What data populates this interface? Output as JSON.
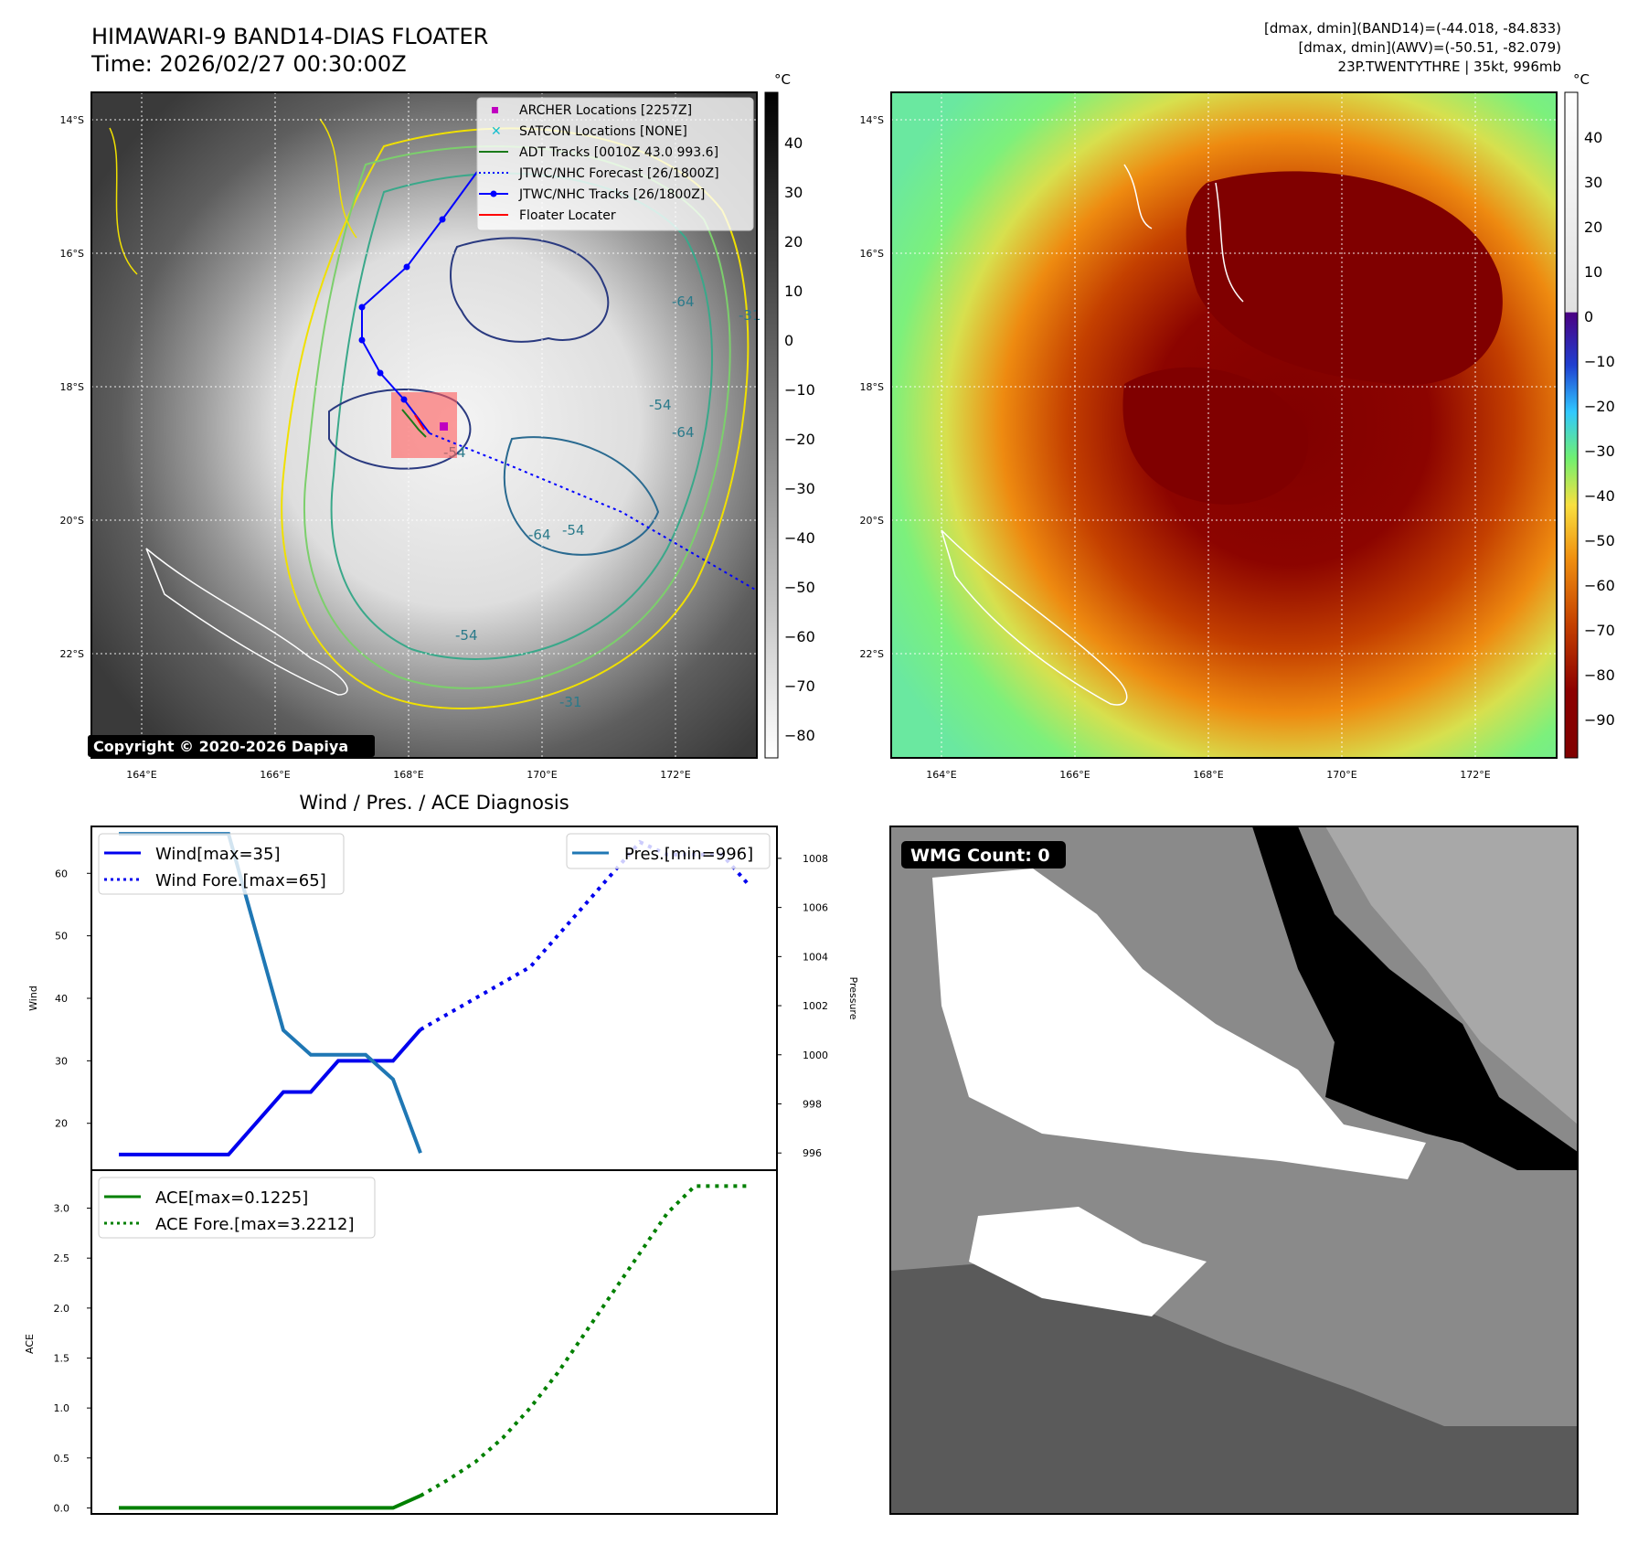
{
  "header": {
    "title_line1": "HIMAWARI-9 BAND14-DIAS FLOATER",
    "title_line2": "Time: 2026/02/27 00:30:00Z",
    "stats_line1": "[dmax, dmin](BAND14)=(-44.018, -84.833)",
    "stats_line2": "[dmax, dmin](AWV)=(-50.51, -82.079)",
    "stats_line3": "23P.TWENTYTHRE | 35kt, 996mb"
  },
  "colors": {
    "wind": "#0000ee",
    "pressure": "#1f77b4",
    "ace": "#008000",
    "archer": "#c000c0",
    "satcon": "#17becf",
    "adt": "#1a7a1a",
    "floater": "#ff0000"
  },
  "map_left": {
    "unit_label": "°C",
    "lat_labels": [
      "14°S",
      "16°S",
      "18°S",
      "20°S",
      "22°S"
    ],
    "lon_labels": [
      "164°E",
      "166°E",
      "168°E",
      "170°E",
      "172°E"
    ],
    "colorbar_ticks": [
      "40",
      "30",
      "20",
      "10",
      "0",
      "−10",
      "−20",
      "−30",
      "−40",
      "−50",
      "−60",
      "−70",
      "−80"
    ],
    "contour_labels": [
      "-64",
      "-54",
      "-64",
      "-54",
      "-64",
      "-54",
      "-54",
      "-31",
      "-31"
    ],
    "copyright": "Copyright © 2020-2026 Dapiya",
    "legend": [
      "ARCHER Locations [2257Z]",
      "SATCON Locations [NONE]",
      "ADT Tracks [0010Z 43.0 993.6]",
      "JTWC/NHC Forecast [26/1800Z]",
      "JTWC/NHC Tracks [26/1800Z]",
      "Floater Locater"
    ]
  },
  "map_right": {
    "unit_label": "°C",
    "lat_labels": [
      "14°S",
      "16°S",
      "18°S",
      "20°S",
      "22°S"
    ],
    "lon_labels": [
      "164°E",
      "166°E",
      "168°E",
      "170°E",
      "172°E"
    ],
    "colorbar_ticks": [
      "40",
      "30",
      "20",
      "10",
      "0",
      "−10",
      "−20",
      "−30",
      "−40",
      "−50",
      "−60",
      "−70",
      "−80",
      "−90"
    ]
  },
  "wmg": {
    "label": "WMG Count: 0"
  },
  "chart_data": [
    {
      "type": "line",
      "title": "Wind / Pres. / ACE Diagnosis",
      "ylabel": "Wind",
      "y2label": "Pressure",
      "ylim": [
        12.5,
        67.5
      ],
      "y2lim": [
        995.3,
        1009.3
      ],
      "yticks": [
        "20",
        "30",
        "40",
        "50",
        "60"
      ],
      "y2ticks": [
        "996",
        "998",
        "1000",
        "1002",
        "1004",
        "1006",
        "1008"
      ],
      "x": [
        0,
        1,
        2,
        3,
        4,
        5,
        6,
        7,
        8,
        9,
        10,
        11,
        12,
        13,
        14,
        15,
        16,
        17,
        18,
        19,
        20,
        21,
        22,
        23
      ],
      "xlim": [
        -1,
        24
      ],
      "series": [
        {
          "name": "Wind[max=35]",
          "axis": "left",
          "style": "solid",
          "x": [
            0,
            1,
            2,
            3,
            4,
            5,
            6,
            7,
            8,
            9,
            10,
            11
          ],
          "values": [
            15,
            15,
            15,
            15,
            15,
            20,
            25,
            25,
            30,
            30,
            30,
            35
          ]
        },
        {
          "name": "Wind Fore.[max=65]",
          "axis": "left",
          "style": "dotted",
          "x": [
            11,
            12,
            13,
            14,
            15,
            16,
            17,
            18,
            19,
            20,
            21,
            22,
            23
          ],
          "values": [
            35,
            37.5,
            40,
            42.5,
            45,
            50,
            55,
            60,
            65,
            63,
            63,
            63,
            58
          ]
        },
        {
          "name": "Pres.[min=996]",
          "axis": "right",
          "style": "solid",
          "x": [
            0,
            1,
            2,
            3,
            4,
            5,
            6,
            7,
            8,
            9,
            10,
            11
          ],
          "values": [
            1009,
            1009,
            1009,
            1009,
            1009,
            1005,
            1001,
            1000,
            1000,
            1000,
            999,
            996
          ]
        }
      ]
    },
    {
      "type": "line",
      "ylabel": "ACE",
      "ylim": [
        -0.06,
        3.38
      ],
      "yticks": [
        "0.0",
        "0.5",
        "1.0",
        "1.5",
        "2.0",
        "2.5",
        "3.0"
      ],
      "xlim": [
        -1,
        24
      ],
      "series": [
        {
          "name": "ACE[max=0.1225]",
          "style": "solid",
          "x": [
            0,
            1,
            2,
            3,
            4,
            5,
            6,
            7,
            8,
            9,
            10,
            11
          ],
          "values": [
            0,
            0,
            0,
            0,
            0,
            0,
            0,
            0,
            0,
            0,
            0,
            0.1225
          ]
        },
        {
          "name": "ACE Fore.[max=3.2212]",
          "style": "dotted",
          "x": [
            11,
            12,
            13,
            14,
            15,
            16,
            17,
            18,
            19,
            20,
            21,
            22,
            23
          ],
          "values": [
            0.1225,
            0.28,
            0.46,
            0.7,
            1.0,
            1.35,
            1.75,
            2.15,
            2.55,
            2.95,
            3.2212,
            3.2212,
            3.2212
          ]
        }
      ]
    }
  ]
}
